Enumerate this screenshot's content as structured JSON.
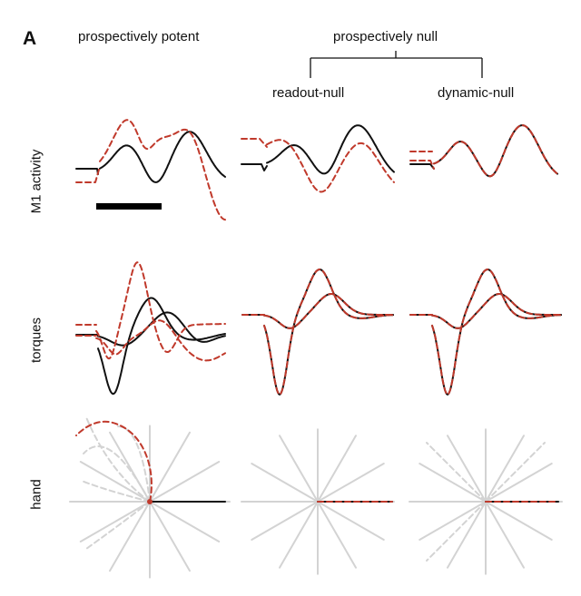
{
  "panel_label": "A",
  "columns": {
    "potent": "prospectively potent",
    "null_group": "prospectively null",
    "readout_null": "readout-null",
    "dynamic_null": "dynamic-null"
  },
  "rows": {
    "activity": "M1 activity",
    "torques": "torques",
    "hand": "hand"
  },
  "colors": {
    "black_trace": "#111111",
    "red_trace": "#c0392b",
    "grey_trace": "#d3d3d3"
  }
}
